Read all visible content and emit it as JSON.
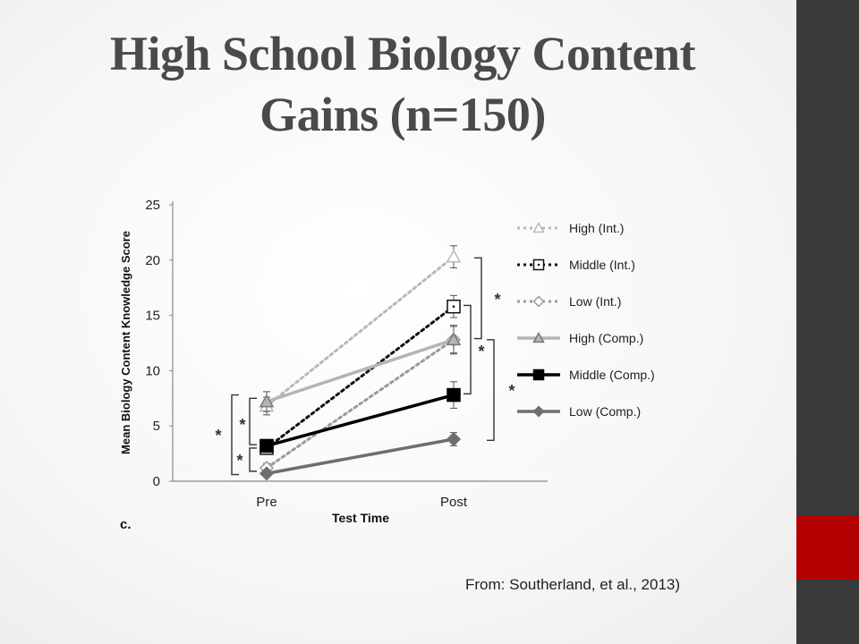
{
  "slide": {
    "title_line1": "High School Biology Content",
    "title_line2": "Gains (n=150)",
    "citation": "From: Southerland, et al., 2013)",
    "colors": {
      "sidebar": "#3a3a3a",
      "accent": "#b30000",
      "title": "#4a4a4a"
    }
  },
  "chart_data": {
    "type": "line",
    "panel_label": "c.",
    "xlabel": "Test Time",
    "ylabel": "Mean Biology Content Knowledge Score",
    "categories": [
      "Pre",
      "Post"
    ],
    "ylim": [
      0,
      25
    ],
    "yticks": [
      0,
      5,
      10,
      15,
      20,
      25
    ],
    "grid": false,
    "legend_position": "right",
    "series": [
      {
        "name": "High (Int.)",
        "values": [
          6.8,
          20.3
        ],
        "err": [
          0.8,
          1.0
        ],
        "color": "#b8b8b8",
        "dash": "dotted",
        "marker": "triangle-open"
      },
      {
        "name": "Middle (Int.)",
        "values": [
          3.0,
          15.8
        ],
        "err": [
          0.5,
          1.0
        ],
        "color": "#111111",
        "dash": "dotted",
        "marker": "square-open"
      },
      {
        "name": "Low (Int.)",
        "values": [
          1.2,
          12.8
        ],
        "err": [
          0.4,
          1.2
        ],
        "color": "#9a9a9a",
        "dash": "dotted",
        "marker": "diamond-open"
      },
      {
        "name": "High (Comp.)",
        "values": [
          7.2,
          12.8
        ],
        "err": [
          0.9,
          1.3
        ],
        "color": "#b5b5b5",
        "dash": "solid",
        "marker": "triangle-filled"
      },
      {
        "name": "Middle (Comp.)",
        "values": [
          3.2,
          7.8
        ],
        "err": [
          0.5,
          1.2
        ],
        "color": "#000000",
        "dash": "solid",
        "marker": "square-filled"
      },
      {
        "name": "Low (Comp.)",
        "values": [
          0.7,
          3.8
        ],
        "err": [
          0.3,
          0.6
        ],
        "color": "#6e6e6e",
        "dash": "solid",
        "marker": "diamond-filled"
      }
    ],
    "annotations": [
      "*",
      "*",
      "*",
      "*",
      "*",
      "*"
    ]
  }
}
